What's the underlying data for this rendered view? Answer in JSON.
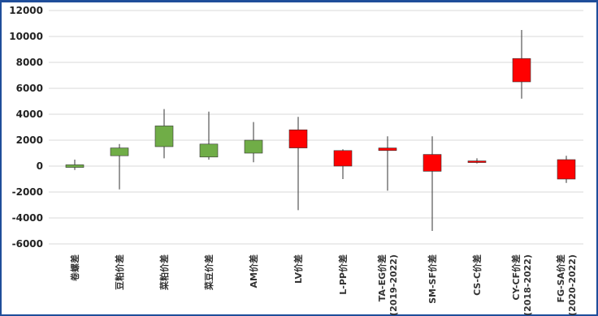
{
  "colors": {
    "up": "#70ad47",
    "down": "#ff0000",
    "neutral_body": "#c00000",
    "wick": "#333333",
    "grid": "#d9d9d9",
    "border": "#1f4e9a"
  },
  "chart_data": {
    "type": "candlestick",
    "title": "",
    "xlabel": "",
    "ylabel": "",
    "ylim": [
      -6000,
      12000
    ],
    "yticks": [
      -6000,
      -4000,
      -2000,
      0,
      2000,
      4000,
      6000,
      8000,
      10000,
      12000
    ],
    "grid": true,
    "legend": "none",
    "categories": [
      [
        "卷螺差"
      ],
      [
        "豆粕价差"
      ],
      [
        "菜粕价差"
      ],
      [
        "菜豆价差"
      ],
      [
        "AM价差"
      ],
      [
        "LV价差"
      ],
      [
        "L-PP价差"
      ],
      [
        "TA-EG价差",
        "(2019-2022)"
      ],
      [
        "SM-SF价差"
      ],
      [
        "CS-C价差"
      ],
      [
        "CY-CF价差",
        "(2018-2022)"
      ],
      [
        "FG-SA价差",
        "(2020-2022)"
      ]
    ],
    "series": [
      {
        "open": -100,
        "close": 100,
        "high": 500,
        "low": -300
      },
      {
        "open": 800,
        "close": 1400,
        "high": 1700,
        "low": -1800
      },
      {
        "open": 1500,
        "close": 3100,
        "high": 4400,
        "low": 600
      },
      {
        "open": 700,
        "close": 1700,
        "high": 4200,
        "low": 500
      },
      {
        "open": 1000,
        "close": 2000,
        "high": 3400,
        "low": 300
      },
      {
        "open": 2800,
        "close": 1400,
        "high": 3800,
        "low": -3400
      },
      {
        "open": 1200,
        "close": 0,
        "high": 1300,
        "low": -1000
      },
      {
        "open": 1400,
        "close": 1200,
        "high": 2300,
        "low": -1900
      },
      {
        "open": 900,
        "close": -400,
        "high": 2300,
        "low": -5000
      },
      {
        "open": 400,
        "close": 300,
        "high": 600,
        "low": 200
      },
      {
        "open": 8300,
        "close": 6500,
        "high": 10500,
        "low": 5200
      },
      {
        "open": 500,
        "close": -1000,
        "high": 800,
        "low": -1300
      }
    ]
  }
}
